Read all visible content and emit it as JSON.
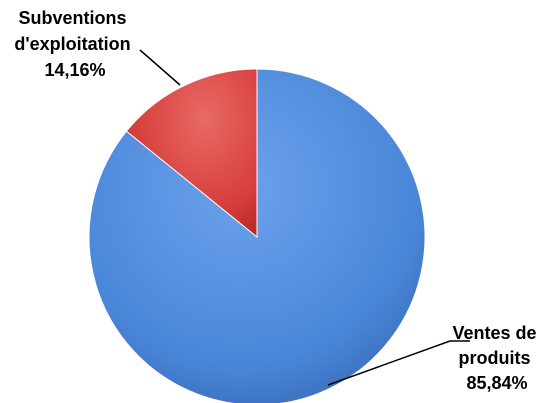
{
  "chart_data": {
    "type": "pie",
    "title": "",
    "slices": [
      {
        "name": "Ventes de produits",
        "value": 85.84,
        "label_lines": [
          "Ventes de",
          "produits"
        ],
        "value_label": "85,84%",
        "color": "#4A86D8"
      },
      {
        "name": "Subventions d'exploitation",
        "value": 14.16,
        "label_lines": [
          "Subventions",
          "d'exploitation"
        ],
        "value_label": "14,16%",
        "color": "#D63C3A"
      }
    ],
    "start_direction": "top",
    "order": "counterclockwise-from-top",
    "legend": "none",
    "data_labels": "outside-with-leader-lines"
  }
}
